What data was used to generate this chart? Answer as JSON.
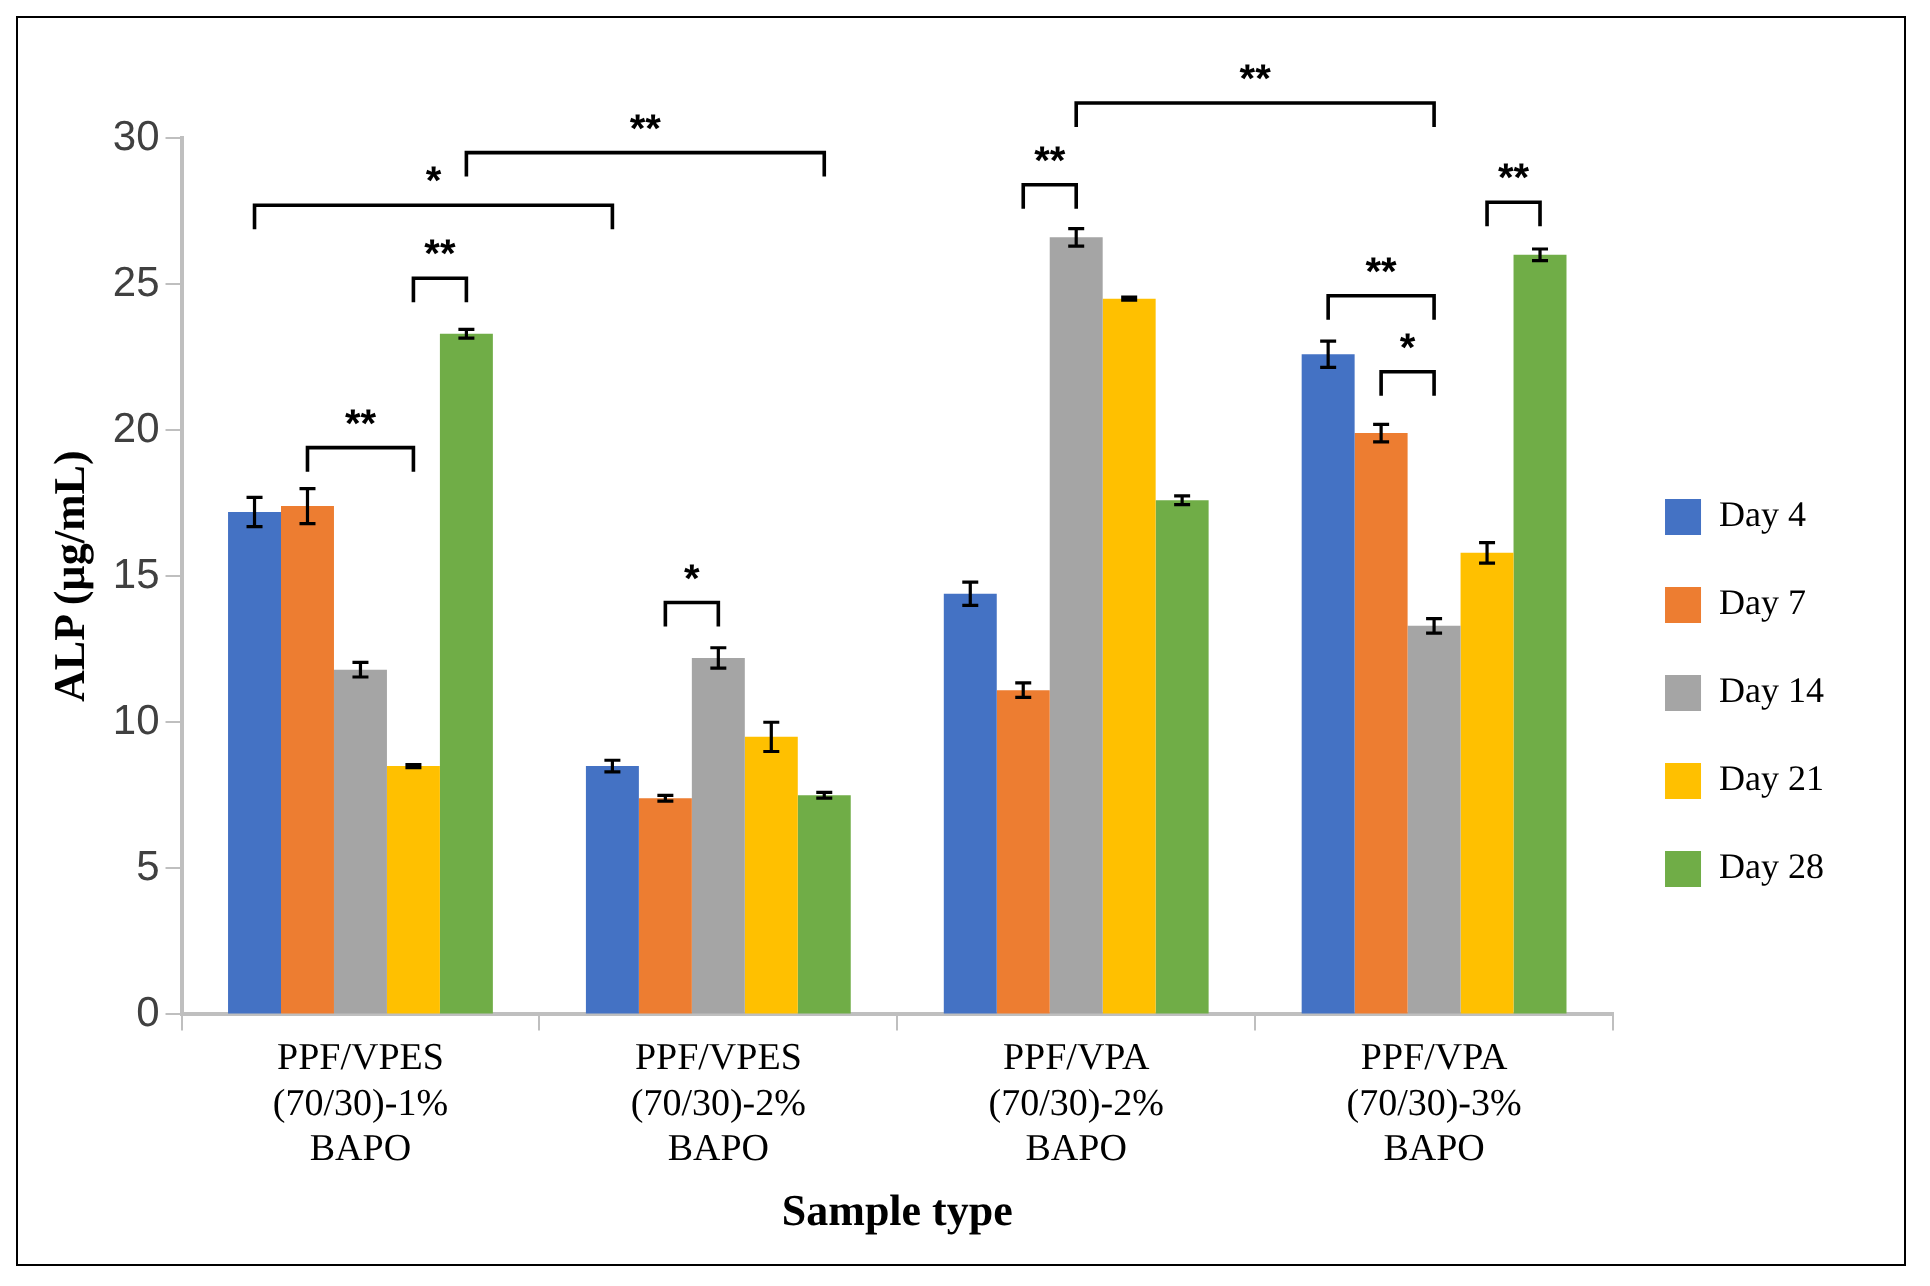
{
  "chart_data": {
    "type": "bar",
    "xlabel": "Sample type",
    "ylabel": "ALP (µg/mL)",
    "categories": [
      "PPF/VPES\n(70/30)-1%\nBAPO",
      "PPF/VPES\n(70/30)-2%\nBAPO",
      "PPF/VPA\n(70/30)-2%\nBAPO",
      "PPF/VPA\n(70/30)-3%\nBAPO"
    ],
    "series": [
      {
        "name": "Day 4",
        "color": "#4472c4",
        "values": [
          17.2,
          8.5,
          14.4,
          22.6
        ],
        "errors": [
          0.5,
          0.2,
          0.4,
          0.45
        ]
      },
      {
        "name": "Day 7",
        "color": "#ed7d31",
        "values": [
          17.4,
          7.4,
          11.1,
          19.9
        ],
        "errors": [
          0.6,
          0.1,
          0.25,
          0.3
        ]
      },
      {
        "name": "Day 14",
        "color": "#a5a5a5",
        "values": [
          11.8,
          12.2,
          26.6,
          13.3
        ],
        "errors": [
          0.25,
          0.35,
          0.3,
          0.25
        ]
      },
      {
        "name": "Day 21",
        "color": "#ffc000",
        "values": [
          8.5,
          9.5,
          24.5,
          15.8
        ],
        "errors": [
          0.05,
          0.5,
          0.05,
          0.35
        ]
      },
      {
        "name": "Day 28",
        "color": "#70ad47",
        "values": [
          23.3,
          7.5,
          17.6,
          26.0
        ],
        "errors": [
          0.15,
          0.1,
          0.15,
          0.2
        ]
      }
    ],
    "ylim": [
      0,
      30
    ],
    "yticks": [
      0,
      5,
      10,
      15,
      20,
      25,
      30
    ],
    "grid": false,
    "legend": "right",
    "annotations": [
      "**",
      "**",
      "*",
      "**",
      "*",
      "**",
      "**",
      "**",
      "*",
      "**"
    ]
  }
}
